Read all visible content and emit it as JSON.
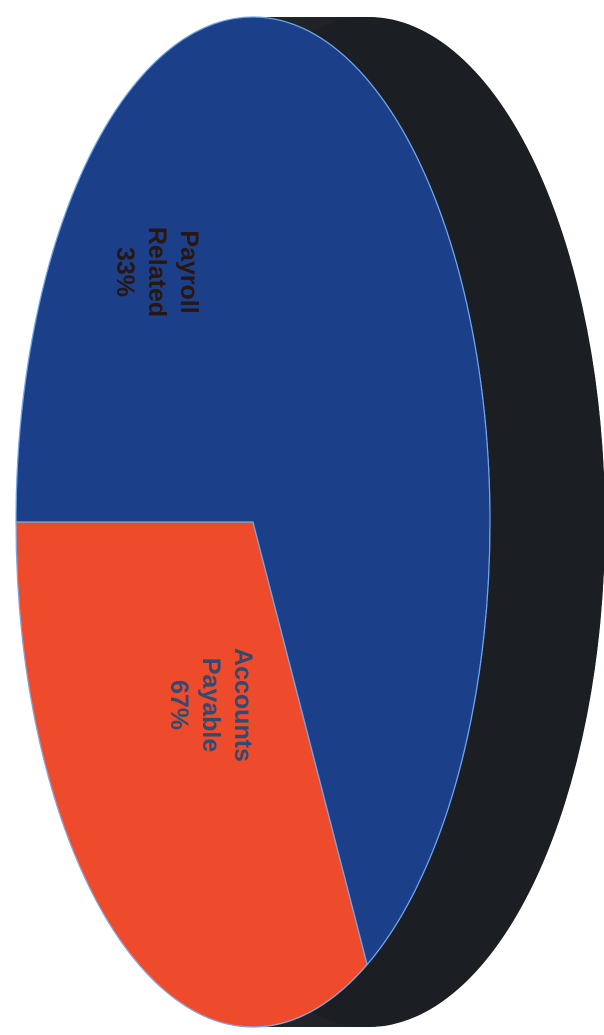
{
  "chart_data": {
    "type": "pie",
    "categories": [
      "Payroll Related",
      "Accounts Payable"
    ],
    "values": [
      33,
      67
    ],
    "data_labels": [
      [
        "Payroll",
        "Related",
        "33%"
      ],
      [
        "Accounts",
        "Payable",
        "67%"
      ]
    ],
    "colors": [
      "#ee4a2c",
      "#1c3f8a"
    ],
    "side_color": "#1b1e22",
    "label_colors": [
      "#2a160f",
      "#324a6f"
    ],
    "style": "3d-rotated",
    "legend": "none"
  }
}
